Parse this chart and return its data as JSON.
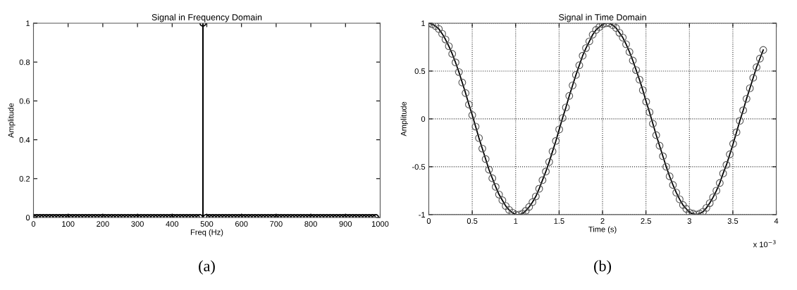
{
  "chart_data": [
    {
      "type": "lollipop",
      "title": "Signal in Frequency Domain",
      "xlabel": "Freq (Hz)",
      "ylabel": "Amplitude",
      "x": [
        0,
        9.4,
        18.8,
        28.2,
        37.6,
        47,
        56.4,
        65.8,
        75.2,
        84.6,
        94,
        103.4,
        112.8,
        122.2,
        131.6,
        141,
        150.4,
        159.8,
        169.2,
        178.6,
        188,
        197.4,
        206.8,
        216.2,
        225.6,
        235,
        244.4,
        253.8,
        263.2,
        272.6,
        282,
        291.4,
        300.8,
        310.2,
        319.6,
        329,
        338.4,
        347.8,
        357.2,
        366.6,
        376,
        385.4,
        394.8,
        404.2,
        413.6,
        423,
        432.4,
        441.8,
        451.2,
        460.6,
        470,
        479.4,
        488.8,
        498.2,
        507.6,
        517,
        526.4,
        535.8,
        545.2,
        554.6,
        564,
        573.4,
        582.8,
        592.2,
        601.6,
        611,
        620.4,
        629.8,
        639.2,
        648.6,
        658,
        667.4,
        676.8,
        686.2,
        695.6,
        705,
        714.4,
        723.8,
        733.2,
        742.6,
        752,
        761.4,
        770.8,
        780.2,
        789.6,
        799,
        808.4,
        817.8,
        827.2,
        836.6,
        846,
        855.4,
        864.8,
        874.2,
        883.6,
        893,
        902.4,
        911.8,
        921.2,
        930.6,
        940,
        949.4,
        958.8,
        968.2,
        977.6,
        987
      ],
      "series": [
        {
          "color": "#000000",
          "values": [
            0,
            0,
            0,
            0,
            0,
            0,
            0,
            0,
            0,
            0,
            0,
            0,
            0,
            0,
            0,
            0,
            0,
            0,
            0,
            0,
            0,
            0,
            0,
            0,
            0,
            0,
            0,
            0,
            0,
            0,
            0,
            0,
            0,
            0,
            0,
            0,
            0,
            0,
            0,
            0,
            0,
            0,
            0,
            0,
            0,
            0,
            0,
            0,
            0,
            0,
            0,
            0,
            1,
            0,
            0,
            0,
            0,
            0,
            0,
            0,
            0,
            0,
            0,
            0,
            0,
            0,
            0,
            0,
            0,
            0,
            0,
            0,
            0,
            0,
            0,
            0,
            0,
            0,
            0,
            0,
            0,
            0,
            0,
            0,
            0,
            0,
            0,
            0,
            0,
            0,
            0,
            0,
            0,
            0,
            0,
            0,
            0,
            0,
            0,
            0,
            0,
            0,
            0,
            0,
            0,
            0
          ]
        }
      ],
      "xlim": [
        0,
        1000
      ],
      "xticks": [
        0,
        100,
        200,
        300,
        400,
        500,
        600,
        700,
        800,
        900,
        1000
      ],
      "ylim": [
        0,
        1
      ],
      "yticks": [
        0,
        0.2,
        0.4,
        0.6,
        0.8,
        1
      ],
      "marker": "circle",
      "grid": false,
      "annotations": [
        "(a)"
      ]
    },
    {
      "type": "line",
      "title": "Signal in Time Domain",
      "xlabel": "Time (s)",
      "ylabel": "Amplitude",
      "x": [
        0,
        0.0385,
        0.077,
        0.1155,
        0.154,
        0.1925,
        0.231,
        0.2695,
        0.308,
        0.3465,
        0.385,
        0.4235,
        0.462,
        0.5005,
        0.539,
        0.5775,
        0.616,
        0.6545,
        0.693,
        0.7315,
        0.77,
        0.8085,
        0.847,
        0.8855,
        0.924,
        0.9625,
        1.001,
        1.0395,
        1.078,
        1.1165,
        1.155,
        1.1935,
        1.232,
        1.2705,
        1.309,
        1.3475,
        1.386,
        1.4245,
        1.463,
        1.5015,
        1.54,
        1.5785,
        1.617,
        1.6555,
        1.694,
        1.7325,
        1.771,
        1.8095,
        1.848,
        1.8865,
        1.925,
        1.9635,
        2.002,
        2.0405,
        2.079,
        2.1175,
        2.156,
        2.1945,
        2.233,
        2.2715,
        2.31,
        2.3485,
        2.387,
        2.4255,
        2.464,
        2.5025,
        2.541,
        2.5795,
        2.618,
        2.6565,
        2.695,
        2.7335,
        2.772,
        2.8105,
        2.849,
        2.8875,
        2.926,
        2.9645,
        3.003,
        3.0415,
        3.08,
        3.1185,
        3.157,
        3.1955,
        3.234,
        3.2725,
        3.311,
        3.3495,
        3.388,
        3.4265,
        3.465,
        3.5035,
        3.542,
        3.5805,
        3.619,
        3.6575,
        3.696,
        3.7345,
        3.773,
        3.8115,
        3.85
      ],
      "series": [
        {
          "color": "#000000",
          "values": [
            1.0,
            0.99,
            0.97,
            0.94,
            0.89,
            0.83,
            0.76,
            0.68,
            0.59,
            0.49,
            0.38,
            0.27,
            0.15,
            0.04,
            -0.08,
            -0.2,
            -0.31,
            -0.42,
            -0.53,
            -0.62,
            -0.71,
            -0.79,
            -0.85,
            -0.91,
            -0.95,
            -0.98,
            -1.0,
            -1.0,
            -0.99,
            -0.96,
            -0.92,
            -0.87,
            -0.81,
            -0.73,
            -0.64,
            -0.55,
            -0.45,
            -0.34,
            -0.23,
            -0.11,
            0.01,
            0.12,
            0.24,
            0.35,
            0.46,
            0.56,
            0.66,
            0.74,
            0.81,
            0.88,
            0.93,
            0.96,
            0.99,
            1.0,
            1.0,
            0.98,
            0.95,
            0.9,
            0.85,
            0.78,
            0.7,
            0.61,
            0.51,
            0.41,
            0.3,
            0.18,
            0.07,
            -0.05,
            -0.17,
            -0.28,
            -0.39,
            -0.5,
            -0.6,
            -0.69,
            -0.77,
            -0.84,
            -0.9,
            -0.94,
            -0.98,
            -0.99,
            -1.0,
            -0.99,
            -0.97,
            -0.93,
            -0.88,
            -0.82,
            -0.75,
            -0.67,
            -0.57,
            -0.48,
            -0.37,
            -0.26,
            -0.14,
            -0.02,
            0.09,
            0.21,
            0.32,
            0.43,
            0.54,
            0.63,
            0.72
          ]
        }
      ],
      "xlim": [
        0,
        4
      ],
      "xticks": [
        0,
        0.5,
        1,
        1.5,
        2,
        2.5,
        3,
        3.5,
        4
      ],
      "ylim": [
        -1,
        1
      ],
      "yticks": [
        -1,
        -0.5,
        0,
        0.5,
        1
      ],
      "marker": "circle",
      "line_style": "solid",
      "grid": true,
      "annotations": [
        "x 10$^{−3}$",
        "(b)"
      ]
    }
  ]
}
